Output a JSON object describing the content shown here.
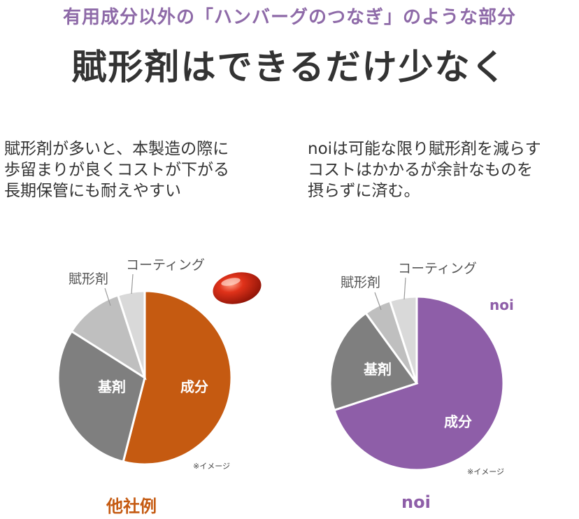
{
  "header": {
    "subtitle": "有用成分以外の「ハンバーグのつなぎ」のような部分",
    "title": "賦形剤はできるだけ少なく"
  },
  "descriptions": {
    "left": [
      "賦形剤が多いと、本製造の際に",
      "歩留まりが良くコストが下がる",
      "長期保管にも耐えやすい"
    ],
    "right": [
      "noiは可能な限り賦形剤を減らす",
      "コストはかかるが余計なものを",
      "摂らずに済む。"
    ]
  },
  "chart_data": [
    {
      "type": "pie",
      "name": "他社例",
      "slices": [
        {
          "label": "成分",
          "value": 54,
          "color": "#c55a11"
        },
        {
          "label": "基剤",
          "value": 30,
          "color": "#7f7f7f"
        },
        {
          "label": "賦形剤",
          "value": 11,
          "color": "#bfbfbf"
        },
        {
          "label": "コーティング",
          "value": 5,
          "color": "#d9d9d9"
        }
      ],
      "note": "※イメージ"
    },
    {
      "type": "pie",
      "name": "noi",
      "slices": [
        {
          "label": "成分",
          "value": 70,
          "color": "#8e5ea8"
        },
        {
          "label": "基剤",
          "value": 20,
          "color": "#7f7f7f"
        },
        {
          "label": "賦形剤",
          "value": 5,
          "color": "#bfbfbf"
        },
        {
          "label": "コーティング",
          "value": 5,
          "color": "#d9d9d9"
        }
      ],
      "brand": "noi",
      "note": "※イメージ"
    }
  ],
  "captions": {
    "left": "他社例",
    "right": "noi"
  }
}
